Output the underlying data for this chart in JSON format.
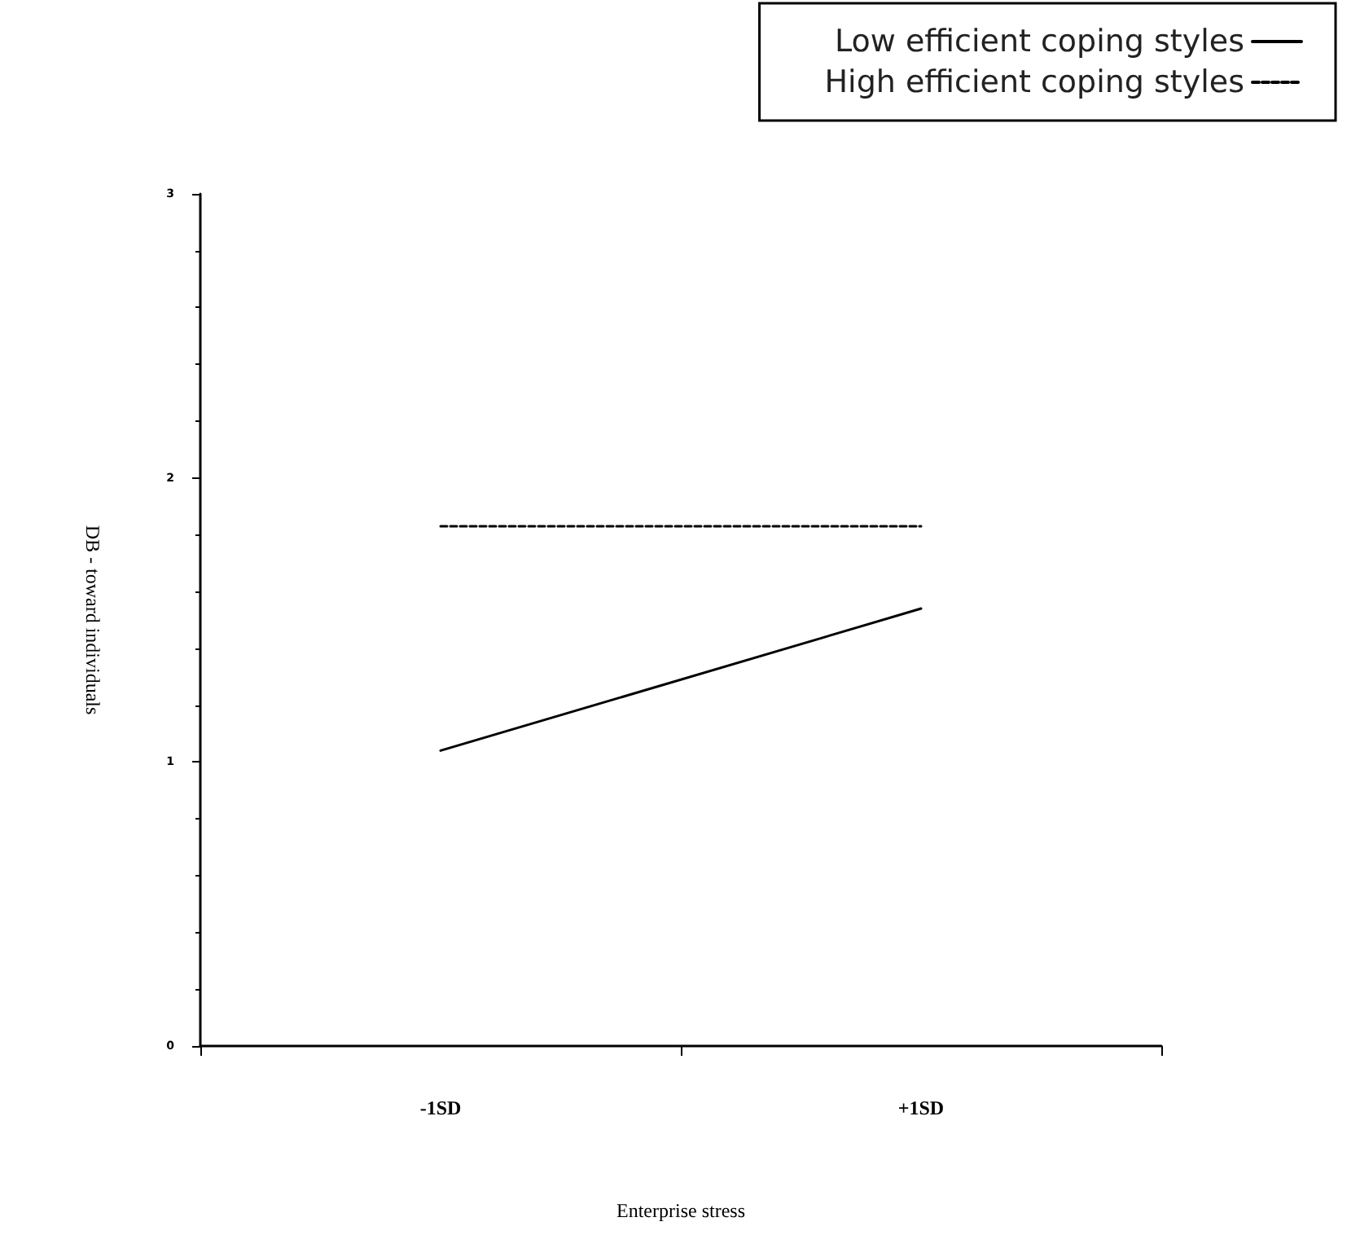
{
  "chart_data": {
    "type": "line",
    "xlabel": "Enterprise stress",
    "ylabel": "DB - toward individuals",
    "categories": [
      "-1SD",
      "+1SD"
    ],
    "series": [
      {
        "name": "Low efficient coping styles",
        "color": "#000000",
        "values": [
          1.04,
          1.54
        ],
        "line_style": "solid"
      },
      {
        "name": "High efficient coping styles",
        "color": "#000000",
        "values": [
          1.83,
          1.83
        ],
        "line_style": "dashed"
      }
    ],
    "ylim": [
      0,
      3
    ],
    "yticks": [
      0,
      1,
      2,
      3
    ],
    "grid": false,
    "legend": "top right",
    "marker": "none"
  }
}
